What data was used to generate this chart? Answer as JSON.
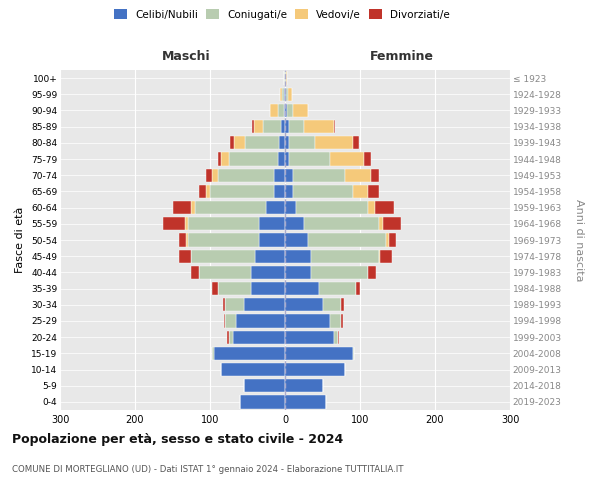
{
  "age_groups": [
    "0-4",
    "5-9",
    "10-14",
    "15-19",
    "20-24",
    "25-29",
    "30-34",
    "35-39",
    "40-44",
    "45-49",
    "50-54",
    "55-59",
    "60-64",
    "65-69",
    "70-74",
    "75-79",
    "80-84",
    "85-89",
    "90-94",
    "95-99",
    "100+"
  ],
  "birth_years": [
    "2019-2023",
    "2014-2018",
    "2009-2013",
    "2004-2008",
    "1999-2003",
    "1994-1998",
    "1989-1993",
    "1984-1988",
    "1979-1983",
    "1974-1978",
    "1969-1973",
    "1964-1968",
    "1959-1963",
    "1954-1958",
    "1949-1953",
    "1944-1948",
    "1939-1943",
    "1934-1938",
    "1929-1933",
    "1924-1928",
    "≤ 1923"
  ],
  "males": {
    "celibi": [
      60,
      55,
      85,
      95,
      70,
      65,
      55,
      45,
      45,
      40,
      35,
      35,
      25,
      15,
      15,
      10,
      8,
      5,
      2,
      1,
      0
    ],
    "coniugati": [
      0,
      0,
      0,
      2,
      5,
      15,
      25,
      45,
      70,
      85,
      95,
      95,
      95,
      85,
      75,
      65,
      45,
      25,
      8,
      3,
      1
    ],
    "vedovi": [
      0,
      0,
      0,
      0,
      0,
      0,
      0,
      0,
      0,
      1,
      2,
      3,
      5,
      5,
      8,
      10,
      15,
      12,
      10,
      3,
      0
    ],
    "divorziati": [
      0,
      0,
      0,
      0,
      2,
      2,
      3,
      8,
      10,
      15,
      10,
      30,
      25,
      10,
      8,
      5,
      5,
      2,
      0,
      0,
      0
    ]
  },
  "females": {
    "nubili": [
      55,
      50,
      80,
      90,
      65,
      60,
      50,
      45,
      35,
      35,
      30,
      25,
      15,
      10,
      10,
      5,
      5,
      5,
      2,
      1,
      0
    ],
    "coniugate": [
      0,
      0,
      0,
      2,
      5,
      15,
      25,
      50,
      75,
      90,
      105,
      100,
      95,
      80,
      70,
      55,
      35,
      20,
      8,
      3,
      1
    ],
    "vedove": [
      0,
      0,
      0,
      0,
      0,
      0,
      0,
      0,
      1,
      2,
      3,
      5,
      10,
      20,
      35,
      45,
      50,
      40,
      20,
      5,
      1
    ],
    "divorziate": [
      0,
      0,
      0,
      0,
      2,
      2,
      3,
      5,
      10,
      15,
      10,
      25,
      25,
      15,
      10,
      10,
      8,
      2,
      0,
      0,
      0
    ]
  },
  "colors": {
    "celibi_nubili": "#4472C4",
    "coniugati": "#B8CCB0",
    "vedovi": "#F5C97A",
    "divorziati": "#C0332A"
  },
  "title": "Popolazione per età, sesso e stato civile - 2024",
  "subtitle": "COMUNE DI MORTEGLIANO (UD) - Dati ISTAT 1° gennaio 2024 - Elaborazione TUTTITALIA.IT",
  "xlabel_left": "Maschi",
  "xlabel_right": "Femmine",
  "ylabel_left": "Fasce di età",
  "ylabel_right": "Anni di nascita",
  "xlim": 300
}
